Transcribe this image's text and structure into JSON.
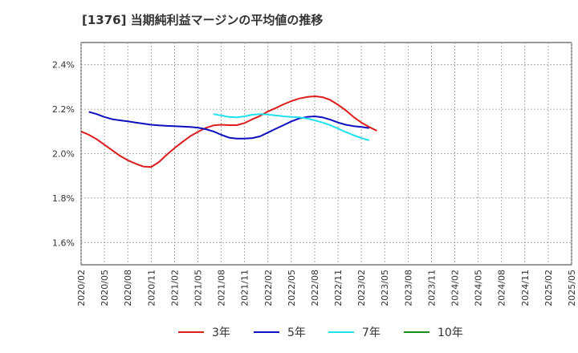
{
  "chart_data": {
    "type": "line",
    "title": "[1376]  当期純利益マージンの平均値の推移",
    "x_ticks": [
      "2020/02",
      "2020/05",
      "2020/08",
      "2020/11",
      "2021/02",
      "2021/05",
      "2021/08",
      "2021/11",
      "2022/02",
      "2022/05",
      "2022/08",
      "2022/11",
      "2023/02",
      "2023/05",
      "2023/08",
      "2023/11",
      "2024/02",
      "2024/05",
      "2024/08",
      "2024/11",
      "2025/02",
      "2025/05"
    ],
    "y_ticks": [
      "1.6%",
      "1.8%",
      "2.0%",
      "2.2%",
      "2.4%"
    ],
    "y_tick_values": [
      1.6,
      1.8,
      2.0,
      2.2,
      2.4
    ],
    "ylim": [
      1.5,
      2.5
    ],
    "xlabel": "",
    "ylabel": "",
    "grid": true,
    "legend_position": "bottom",
    "series": [
      {
        "name": "3年",
        "color": "#dd1c1c",
        "values": [
          2.1,
          2.085,
          2.065,
          2.04,
          2.015,
          1.99,
          1.97,
          1.955,
          1.942,
          1.94,
          1.962,
          1.995,
          2.025,
          2.052,
          2.078,
          2.098,
          2.115,
          2.127,
          2.13,
          2.128,
          2.128,
          2.138,
          2.155,
          2.17,
          2.19,
          2.205,
          2.222,
          2.236,
          2.248,
          2.255,
          2.258,
          2.254,
          2.242,
          2.22,
          2.195,
          2.165,
          2.14,
          2.12,
          2.103
        ]
      },
      {
        "name": "5年",
        "color": "#0e0ebf",
        "values": [
          null,
          2.188,
          2.178,
          2.165,
          2.155,
          2.15,
          2.145,
          2.14,
          2.135,
          2.13,
          2.127,
          2.125,
          2.124,
          2.122,
          2.12,
          2.117,
          2.11,
          2.1,
          2.085,
          2.072,
          2.068,
          2.068,
          2.07,
          2.078,
          2.095,
          2.112,
          2.128,
          2.145,
          2.158,
          2.165,
          2.168,
          2.163,
          2.153,
          2.14,
          2.13,
          2.124,
          2.12,
          2.115,
          null
        ]
      },
      {
        "name": "7年",
        "color": "#1ee0ee",
        "values": [
          null,
          null,
          null,
          null,
          null,
          null,
          null,
          null,
          null,
          null,
          null,
          null,
          null,
          null,
          null,
          null,
          null,
          2.178,
          2.172,
          2.165,
          2.163,
          2.168,
          2.175,
          2.178,
          2.176,
          2.172,
          2.168,
          2.165,
          2.163,
          2.158,
          2.15,
          2.14,
          2.128,
          2.113,
          2.097,
          2.083,
          2.07,
          2.06,
          null
        ]
      },
      {
        "name": "10年",
        "color": "#1a8c1a",
        "values": []
      }
    ]
  }
}
